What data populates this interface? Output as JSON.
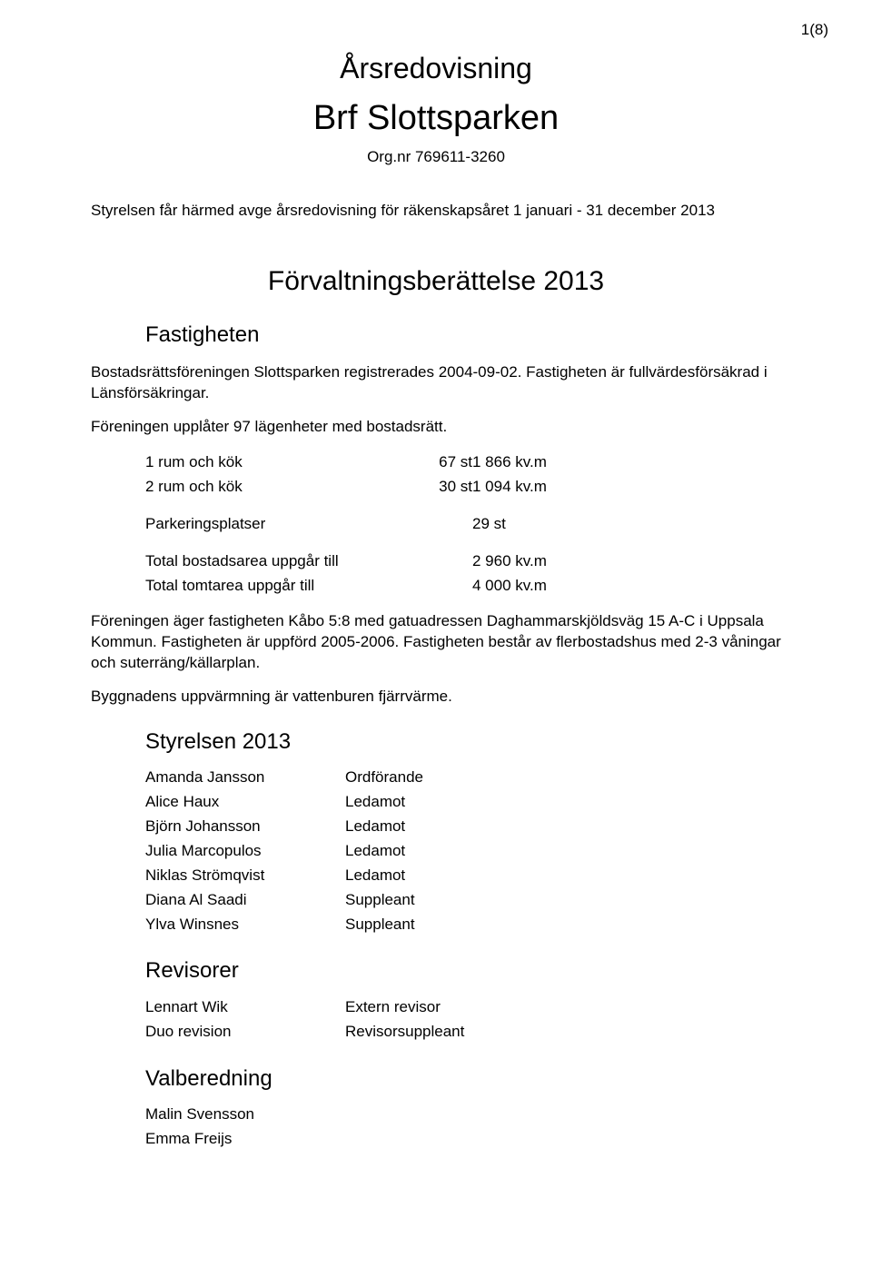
{
  "page_number": "1(8)",
  "title": {
    "line1": "Årsredovisning",
    "line2": "Brf Slottsparken",
    "orgnr": "Org.nr 769611-3260"
  },
  "intro": "Styrelsen får härmed avge årsredovisning för räkenskapsåret 1 januari - 31 december 2013",
  "sections": {
    "forv_heading": "Förvaltningsberättelse 2013",
    "fastigheten": {
      "heading": "Fastigheten",
      "p1": "Bostadsrättsföreningen Slottsparken registrerades 2004-09-02. Fastigheten är fullvärdesförsäkrad i Länsförsäkringar.",
      "p2": "Föreningen upplåter 97 lägenheter med bostadsrätt.",
      "rows": [
        {
          "label": "1 rum och kök",
          "qty": "67 st",
          "val": "1 866 kv.m"
        },
        {
          "label": "2 rum och kök",
          "qty": "30 st",
          "val": "1 094 kv.m"
        }
      ],
      "parking": {
        "label": "Parkeringsplatser",
        "val": "29 st"
      },
      "totals": [
        {
          "label": "Total bostadsarea uppgår till",
          "val": "2 960 kv.m"
        },
        {
          "label": "Total tomtarea uppgår till",
          "val": "4 000 kv.m"
        }
      ],
      "p3": "Föreningen äger fastigheten Kåbo 5:8 med gatuadressen Daghammarskjöldsväg 15 A-C i Uppsala Kommun. Fastigheten är uppförd 2005-2006. Fastigheten består av flerbostadshus med 2-3 våningar och suterräng/källarplan.",
      "p4": "Byggnadens uppvärmning är vattenburen fjärrvärme."
    },
    "styrelsen": {
      "heading": "Styrelsen 2013",
      "members": [
        {
          "name": "Amanda Jansson",
          "role": "Ordförande"
        },
        {
          "name": "Alice Haux",
          "role": "Ledamot"
        },
        {
          "name": "Björn Johansson",
          "role": "Ledamot"
        },
        {
          "name": "Julia Marcopulos",
          "role": "Ledamot"
        },
        {
          "name": "Niklas Strömqvist",
          "role": "Ledamot"
        },
        {
          "name": "Diana Al Saadi",
          "role": "Suppleant"
        },
        {
          "name": "Ylva Winsnes",
          "role": "Suppleant"
        }
      ]
    },
    "revisorer": {
      "heading": "Revisorer",
      "members": [
        {
          "name": "Lennart Wik",
          "role": "Extern revisor"
        },
        {
          "name": "Duo revision",
          "role": "Revisorsuppleant"
        }
      ]
    },
    "valberedning": {
      "heading": "Valberedning",
      "members": [
        {
          "name": "Malin Svensson",
          "role": ""
        },
        {
          "name": "Emma Freijs",
          "role": ""
        }
      ]
    }
  }
}
